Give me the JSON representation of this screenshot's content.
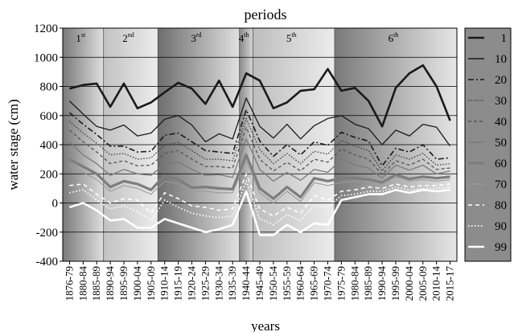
{
  "chart_data": {
    "type": "line",
    "title": "periods",
    "xlabel": "years",
    "ylabel": "water stage (cm)",
    "ylim": [
      -400,
      1200
    ],
    "yticks": [
      -400,
      -200,
      0,
      200,
      400,
      600,
      800,
      1000,
      1200
    ],
    "grid": true,
    "legend_placement": "right",
    "x": [
      "1876-79",
      "1880-84",
      "1885-89",
      "1890-94",
      "1895-99",
      "1900-04",
      "1905-09",
      "1910-14",
      "1915-19",
      "1920-24",
      "1925-29",
      "1930-34",
      "1935-39",
      "1940-44",
      "1945-49",
      "1950-54",
      "1955-59",
      "1960-64",
      "1965-69",
      "1970-74",
      "1975-79",
      "1980-84",
      "1985-89",
      "1990-94",
      "1995-99",
      "2000-04",
      "2005-09",
      "2010-14",
      "2015-17"
    ],
    "periods": [
      {
        "base": "1",
        "sup": "st",
        "start": "1876-79",
        "end": "1885-89",
        "color_dark": "#7a7a7a",
        "color_light": "#dedede"
      },
      {
        "base": "2",
        "sup": "nd",
        "start": "1890-94",
        "end": "1905-09",
        "color_dark": "#c2c2c2",
        "color_light": "#ececec"
      },
      {
        "base": "3",
        "sup": "rd",
        "start": "1910-14",
        "end": "1935-39",
        "color_dark": "#6e6e6e",
        "color_light": "#e0e0e0"
      },
      {
        "base": "4",
        "sup": "th",
        "start": "1940-44",
        "end": "1940-44",
        "color_dark": "#8a8a8a",
        "color_light": "#d6d6d6"
      },
      {
        "base": "5",
        "sup": "th",
        "start": "1945-49",
        "end": "1970-74",
        "color_dark": "#bdbdbd",
        "color_light": "#ececec"
      },
      {
        "base": "6",
        "sup": "th",
        "start": "1975-79",
        "end": "2015-17",
        "color_dark": "#7a7a7a",
        "color_light": "#e6e6e6"
      }
    ],
    "series": [
      {
        "name": "1",
        "color": "#1a1a1a",
        "values": [
          785,
          810,
          820,
          660,
          820,
          650,
          690,
          760,
          825,
          785,
          680,
          840,
          660,
          890,
          840,
          650,
          690,
          770,
          780,
          920,
          770,
          790,
          700,
          525,
          790,
          890,
          945,
          800,
          565
        ]
      },
      {
        "name": "10",
        "color": "#1a1a1a",
        "values": [
          700,
          610,
          525,
          500,
          535,
          460,
          480,
          575,
          600,
          535,
          420,
          475,
          440,
          720,
          525,
          445,
          540,
          440,
          530,
          580,
          600,
          540,
          510,
          400,
          500,
          460,
          540,
          520,
          390
        ]
      },
      {
        "name": "20",
        "color": "#1a1a1a",
        "values": [
          620,
          540,
          470,
          390,
          390,
          350,
          355,
          465,
          480,
          420,
          360,
          350,
          340,
          640,
          425,
          320,
          400,
          330,
          420,
          395,
          485,
          450,
          425,
          255,
          375,
          350,
          400,
          300,
          310
        ]
      },
      {
        "name": "30",
        "color": "#444444",
        "values": [
          560,
          480,
          410,
          330,
          340,
          300,
          310,
          400,
          415,
          360,
          300,
          300,
          290,
          580,
          365,
          270,
          340,
          270,
          355,
          335,
          430,
          390,
          360,
          220,
          330,
          300,
          340,
          260,
          270
        ]
      },
      {
        "name": "40",
        "color": "#555555",
        "values": [
          500,
          420,
          350,
          270,
          290,
          255,
          260,
          340,
          360,
          300,
          250,
          250,
          240,
          520,
          300,
          220,
          280,
          220,
          300,
          280,
          370,
          330,
          300,
          195,
          290,
          260,
          300,
          230,
          240
        ]
      },
      {
        "name": "50",
        "color": "#7a7a7a",
        "values": [
          420,
          330,
          270,
          190,
          230,
          200,
          190,
          270,
          280,
          230,
          190,
          195,
          175,
          440,
          230,
          150,
          210,
          155,
          230,
          210,
          300,
          260,
          240,
          170,
          260,
          225,
          260,
          200,
          220
        ]
      },
      {
        "name": "60",
        "color": "#7d7d7d",
        "values": [
          300,
          250,
          200,
          110,
          150,
          130,
          90,
          190,
          160,
          105,
          110,
          100,
          95,
          330,
          100,
          30,
          110,
          40,
          170,
          150,
          170,
          170,
          160,
          140,
          195,
          165,
          180,
          170,
          180
        ]
      },
      {
        "name": "70",
        "color": "#9a9a9a",
        "values": [
          260,
          210,
          160,
          80,
          120,
          100,
          60,
          150,
          130,
          80,
          80,
          70,
          70,
          290,
          70,
          0,
          80,
          10,
          140,
          120,
          140,
          150,
          150,
          130,
          180,
          150,
          160,
          150,
          160
        ]
      },
      {
        "name": "80",
        "color": "#ffffff",
        "values": [
          120,
          130,
          60,
          0,
          30,
          20,
          -70,
          70,
          30,
          -20,
          -30,
          -50,
          -40,
          200,
          -40,
          -90,
          -30,
          -70,
          50,
          20,
          80,
          90,
          110,
          100,
          130,
          110,
          120,
          120,
          130
        ]
      },
      {
        "name": "90",
        "color": "#ffffff",
        "values": [
          70,
          90,
          20,
          -40,
          -20,
          -60,
          -120,
          20,
          -30,
          -70,
          -90,
          -100,
          -90,
          150,
          -110,
          -150,
          -80,
          -120,
          -20,
          -30,
          50,
          60,
          80,
          80,
          110,
          90,
          100,
          100,
          110
        ]
      },
      {
        "name": "99",
        "color": "#ffffff",
        "values": [
          -30,
          0,
          -50,
          -120,
          -110,
          -170,
          -170,
          -110,
          -140,
          -170,
          -200,
          -180,
          -150,
          80,
          -220,
          -220,
          -150,
          -200,
          -140,
          -150,
          20,
          40,
          60,
          60,
          90,
          70,
          90,
          80,
          90
        ]
      }
    ]
  }
}
